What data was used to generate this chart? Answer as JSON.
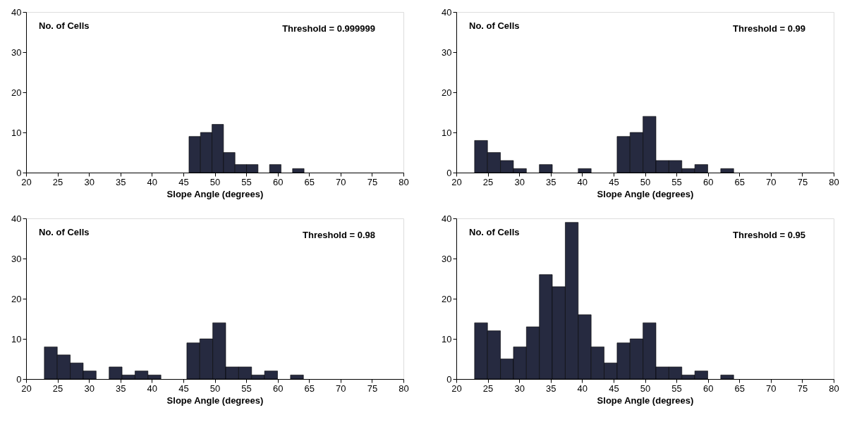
{
  "chart_data": [
    {
      "type": "histogram",
      "ylabel": "No. of Cells",
      "xlabel": "Slope Angle (degrees)",
      "annotations": [
        "Threshold = 0.999999"
      ],
      "color": "#262a40",
      "bins": [
        45.9,
        47.73,
        49.56,
        51.39,
        53.22,
        55.05,
        56.88,
        58.71,
        60.54,
        62.37,
        64.2
      ],
      "values": [
        9,
        10,
        12,
        5,
        2,
        2,
        0,
        2,
        0,
        1
      ],
      "xlim": [
        20,
        80
      ],
      "xticks": [
        20,
        25,
        30,
        35,
        40,
        45,
        50,
        55,
        60,
        65,
        70,
        75,
        80
      ],
      "ylim": [
        0,
        40
      ],
      "yticks": [
        0,
        10,
        20,
        30,
        40
      ],
      "grid": false
    },
    {
      "type": "histogram",
      "ylabel": "No. of Cells",
      "xlabel": "Slope Angle (degrees)",
      "annotations": [
        "Threshold = 0.99"
      ],
      "color": "#262a40",
      "bins": [
        22.9,
        24.96,
        27.02,
        29.08,
        31.14,
        33.2,
        35.26,
        37.32,
        39.38,
        41.44,
        43.5,
        45.56,
        47.62,
        49.68,
        51.74,
        53.8,
        55.86,
        57.92,
        59.98,
        62.04,
        64.1
      ],
      "values": [
        8,
        5,
        3,
        1,
        0,
        2,
        0,
        0,
        1,
        0,
        0,
        9,
        10,
        14,
        3,
        3,
        1,
        2,
        0,
        1
      ],
      "xlim": [
        20,
        80
      ],
      "xticks": [
        20,
        25,
        30,
        35,
        40,
        45,
        50,
        55,
        60,
        65,
        70,
        75,
        80
      ],
      "ylim": [
        0,
        40
      ],
      "yticks": [
        0,
        10,
        20,
        30,
        40
      ],
      "grid": false
    },
    {
      "type": "histogram",
      "ylabel": "No. of Cells",
      "xlabel": "Slope Angle (degrees)",
      "annotations": [
        "Threshold = 0.98"
      ],
      "color": "#262a40",
      "bins": [
        22.9,
        24.96,
        27.02,
        29.08,
        31.14,
        33.2,
        35.26,
        37.32,
        39.38,
        41.44,
        43.5,
        45.56,
        47.62,
        49.68,
        51.74,
        53.8,
        55.86,
        57.92,
        59.98,
        62.04,
        64.1
      ],
      "values": [
        8,
        6,
        4,
        2,
        0,
        3,
        1,
        2,
        1,
        0,
        0,
        9,
        10,
        14,
        3,
        3,
        1,
        2,
        0,
        1
      ],
      "xlim": [
        20,
        80
      ],
      "xticks": [
        20,
        25,
        30,
        35,
        40,
        45,
        50,
        55,
        60,
        65,
        70,
        75,
        80
      ],
      "ylim": [
        0,
        40
      ],
      "yticks": [
        0,
        10,
        20,
        30,
        40
      ],
      "grid": false
    },
    {
      "type": "histogram",
      "ylabel": "No. of Cells",
      "xlabel": "Slope Angle (degrees)",
      "annotations": [
        "Threshold = 0.95"
      ],
      "color": "#262a40",
      "bins": [
        22.9,
        24.96,
        27.02,
        29.08,
        31.14,
        33.2,
        35.26,
        37.32,
        39.38,
        41.44,
        43.5,
        45.56,
        47.62,
        49.68,
        51.74,
        53.8,
        55.86,
        57.92,
        59.98,
        62.04,
        64.1
      ],
      "values": [
        14,
        12,
        5,
        8,
        13,
        26,
        23,
        39,
        16,
        8,
        4,
        9,
        10,
        14,
        3,
        3,
        1,
        2,
        0,
        1
      ],
      "xlim": [
        20,
        80
      ],
      "xticks": [
        20,
        25,
        30,
        35,
        40,
        45,
        50,
        55,
        60,
        65,
        70,
        75,
        80
      ],
      "ylim": [
        0,
        40
      ],
      "yticks": [
        0,
        10,
        20,
        30,
        40
      ],
      "grid": false
    }
  ]
}
